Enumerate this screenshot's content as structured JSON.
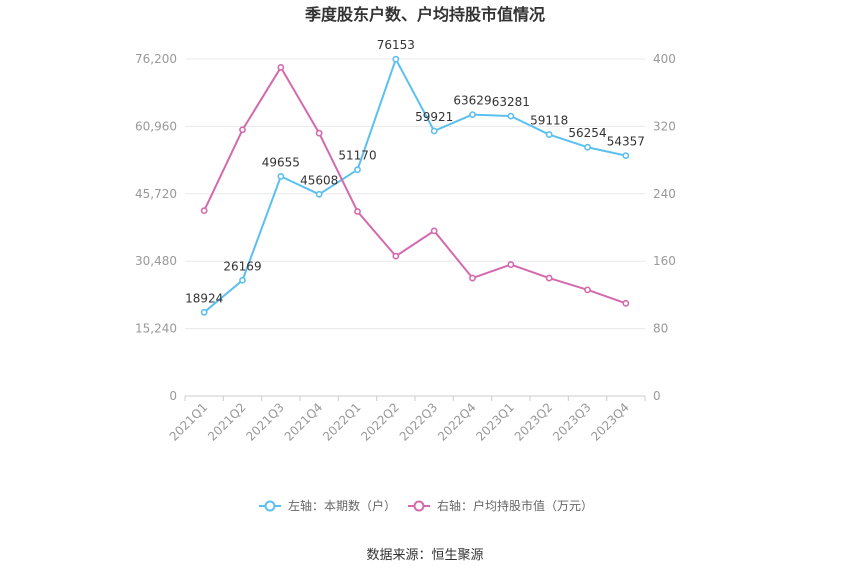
{
  "chart_data": {
    "type": "line",
    "title": "季度股东户数、户均持股市值情况",
    "categories": [
      "2021Q1",
      "2021Q2",
      "2021Q3",
      "2021Q4",
      "2022Q1",
      "2022Q2",
      "2022Q3",
      "2022Q4",
      "2023Q1",
      "2023Q2",
      "2023Q3",
      "2023Q4"
    ],
    "series": [
      {
        "name": "左轴：本期数（户）",
        "axis": "left",
        "color": "#5bc0f0",
        "values": [
          18924,
          26169,
          49655,
          45608,
          51170,
          76153,
          59921,
          63629,
          63281,
          59118,
          56254,
          54357
        ],
        "data_labels": [
          "18924",
          "26169",
          "49655",
          "45608",
          "51170",
          "76153",
          "59921",
          "63629",
          "63281",
          "59118",
          "56254",
          "54357"
        ]
      },
      {
        "name": "右轴：户均持股市值（万元）",
        "axis": "right",
        "color": "#d46aae",
        "values": [
          220,
          316,
          390,
          312,
          219,
          166,
          196,
          140,
          156,
          140,
          126,
          110
        ]
      }
    ],
    "y_left": {
      "ticks": [
        "0",
        "15,240",
        "30,480",
        "45,720",
        "60,960",
        "76,200"
      ],
      "min": 0,
      "max": 76200
    },
    "y_right": {
      "ticks": [
        "0",
        "80",
        "160",
        "240",
        "320",
        "400"
      ],
      "min": 0,
      "max": 400
    },
    "grid": true,
    "legend_position": "bottom"
  },
  "source": "数据来源：恒生聚源"
}
